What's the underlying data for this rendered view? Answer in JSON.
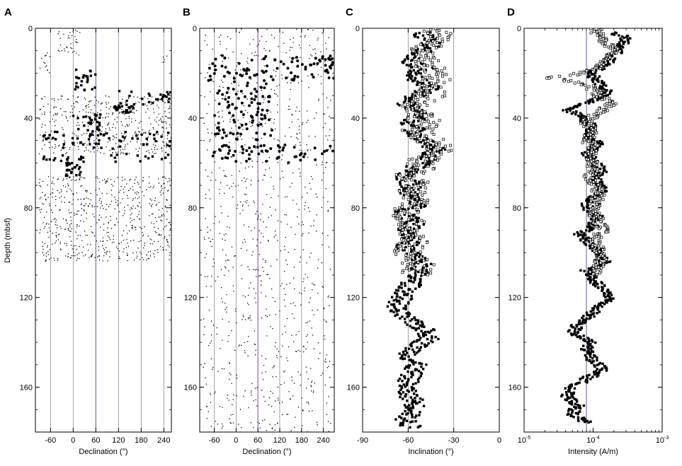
{
  "figure": {
    "y_axis_label": "Depth (mbsf)",
    "colors": {
      "axis": "#000000",
      "gridline": "#8c8c8c",
      "purple_line": "#7a4a9a",
      "points": "#000000"
    }
  },
  "chart_data": [
    {
      "panel": "A",
      "type": "scatter",
      "xlabel": "Declination (°)",
      "ylabel": "Depth (mbsf)",
      "xlim": [
        -100,
        260
      ],
      "ylim": [
        180,
        0
      ],
      "x_ticks": [
        -60,
        0,
        60,
        120,
        180,
        240
      ],
      "y_ticks": [
        0,
        40,
        80,
        120,
        160
      ],
      "gridlines_x": [
        -60,
        0,
        120,
        180,
        240
      ],
      "highlight_line_x": 60,
      "series": [
        {
          "style": "filled-square",
          "clusters": [
            {
              "depth": [
                18,
                28
              ],
              "dec": [
                0,
                60
              ]
            },
            {
              "depth": [
                28,
                34
              ],
              "dec": [
                110,
                260
              ]
            },
            {
              "depth": [
                34,
                38
              ],
              "dec": [
                100,
                160
              ]
            },
            {
              "depth": [
                38,
                46
              ],
              "dec": [
                0,
                80
              ]
            },
            {
              "depth": [
                46,
                54
              ],
              "dec": [
                -80,
                260
              ]
            },
            {
              "depth": [
                56,
                60
              ],
              "dec": [
                -80,
                260
              ]
            },
            {
              "depth": [
                60,
                66
              ],
              "dec": [
                -20,
                20
              ]
            }
          ]
        },
        {
          "style": "dot",
          "clusters": [
            {
              "depth": [
                0,
                12
              ],
              "dec": [
                -40,
                20
              ]
            },
            {
              "depth": [
                10,
                20
              ],
              "dec": [
                -90,
                -60
              ]
            },
            {
              "depth": [
                12,
                16
              ],
              "dec": [
                230,
                260
              ]
            },
            {
              "depth": [
                30,
                56
              ],
              "dec": [
                -90,
                260
              ]
            },
            {
              "depth": [
                66,
                104
              ],
              "dec": [
                -90,
                260
              ]
            }
          ]
        }
      ]
    },
    {
      "panel": "B",
      "type": "scatter",
      "xlabel": "Declination (°)",
      "ylabel": "",
      "xlim": [
        -100,
        270
      ],
      "ylim": [
        180,
        0
      ],
      "x_ticks": [
        -60,
        0,
        60,
        120,
        180,
        240
      ],
      "y_ticks": [
        0,
        40,
        80,
        120,
        160
      ],
      "gridlines_x": [
        -60,
        0,
        120,
        180,
        240
      ],
      "highlight_line_x": 60,
      "series": [
        {
          "style": "filled-circle",
          "clusters": [
            {
              "depth": [
                12,
                24
              ],
              "dec": [
                -80,
                270
              ]
            },
            {
              "depth": [
                24,
                50
              ],
              "dec": [
                -60,
                100
              ]
            },
            {
              "depth": [
                52,
                60
              ],
              "dec": [
                -70,
                270
              ]
            }
          ]
        },
        {
          "style": "dot",
          "clusters": [
            {
              "depth": [
                0,
                180
              ],
              "dec": [
                -90,
                260
              ]
            }
          ]
        }
      ]
    },
    {
      "panel": "C",
      "type": "scatter",
      "xlabel": "Inclination (°)",
      "ylabel": "",
      "xlim": [
        -90,
        0
      ],
      "ylim": [
        180,
        0
      ],
      "x_ticks": [
        -90,
        -60,
        -30,
        0
      ],
      "y_ticks": [
        0,
        40,
        80,
        120,
        160
      ],
      "gridlines_x": [
        -60,
        -30
      ],
      "series": [
        {
          "style": "filled-square",
          "profile": [
            [
              2,
              -52
            ],
            [
              6,
              -45
            ],
            [
              10,
              -48
            ],
            [
              14,
              -60
            ],
            [
              18,
              -50
            ],
            [
              22,
              -58
            ],
            [
              26,
              -45
            ],
            [
              30,
              -55
            ],
            [
              34,
              -62
            ],
            [
              38,
              -50
            ],
            [
              42,
              -58
            ],
            [
              46,
              -55
            ],
            [
              50,
              -50
            ],
            [
              54,
              -42
            ],
            [
              58,
              -48
            ],
            [
              62,
              -55
            ],
            [
              66,
              -62
            ],
            [
              70,
              -58
            ],
            [
              74,
              -60
            ],
            [
              78,
              -52
            ],
            [
              82,
              -62
            ],
            [
              86,
              -55
            ],
            [
              90,
              -60
            ],
            [
              94,
              -58
            ],
            [
              98,
              -62
            ],
            [
              102,
              -55
            ],
            [
              106,
              -50
            ],
            [
              110,
              -55
            ],
            [
              114,
              -58
            ],
            [
              118,
              -62
            ],
            [
              122,
              -66
            ],
            [
              126,
              -68
            ],
            [
              130,
              -60
            ],
            [
              134,
              -50
            ],
            [
              138,
              -45
            ],
            [
              142,
              -55
            ],
            [
              146,
              -60
            ],
            [
              150,
              -55
            ],
            [
              154,
              -58
            ],
            [
              158,
              -60
            ],
            [
              162,
              -62
            ],
            [
              166,
              -56
            ],
            [
              170,
              -55
            ],
            [
              174,
              -62
            ],
            [
              178,
              -58
            ]
          ]
        },
        {
          "style": "open-square",
          "depth_range": [
            0,
            110
          ],
          "profile": [
            [
              2,
              -40
            ],
            [
              6,
              -38
            ],
            [
              10,
              -55
            ],
            [
              14,
              -50
            ],
            [
              18,
              -45
            ],
            [
              22,
              -40
            ],
            [
              26,
              -48
            ],
            [
              30,
              -42
            ],
            [
              34,
              -55
            ],
            [
              38,
              -52
            ],
            [
              42,
              -48
            ],
            [
              46,
              -55
            ],
            [
              50,
              -45
            ],
            [
              54,
              -40
            ],
            [
              58,
              -50
            ],
            [
              62,
              -52
            ],
            [
              66,
              -60
            ],
            [
              70,
              -55
            ],
            [
              74,
              -58
            ],
            [
              78,
              -55
            ],
            [
              82,
              -62
            ],
            [
              86,
              -58
            ],
            [
              90,
              -60
            ],
            [
              94,
              -55
            ],
            [
              98,
              -60
            ],
            [
              102,
              -58
            ],
            [
              106,
              -52
            ],
            [
              110,
              -55
            ]
          ]
        }
      ]
    },
    {
      "panel": "D",
      "type": "scatter",
      "xlabel": "Intensity (A/m)",
      "ylabel": "",
      "xscale": "log",
      "xlim": [
        1e-05,
        0.001
      ],
      "ylim": [
        180,
        0
      ],
      "x_ticks": [
        {
          "base": "10",
          "exp": "-5",
          "value": 1e-05
        },
        {
          "base": "10",
          "exp": "-4",
          "value": 0.0001
        },
        {
          "base": "10",
          "exp": "-3",
          "value": 0.001
        }
      ],
      "y_ticks": [
        0,
        40,
        80,
        120,
        160
      ],
      "highlight_line_x": 8e-05,
      "series": [
        {
          "style": "filled-square",
          "profile": [
            [
              2,
              0.00018
            ],
            [
              4,
              0.0003
            ],
            [
              8,
              0.00025
            ],
            [
              12,
              0.0002
            ],
            [
              16,
              0.00015
            ],
            [
              20,
              9e-05
            ],
            [
              24,
              0.00012
            ],
            [
              28,
              0.00016
            ],
            [
              32,
              0.0001
            ],
            [
              36,
              4e-05
            ],
            [
              40,
              7e-05
            ],
            [
              44,
              0.0001
            ],
            [
              48,
              9e-05
            ],
            [
              52,
              0.00012
            ],
            [
              56,
              8e-05
            ],
            [
              60,
              0.00011
            ],
            [
              64,
              0.00013
            ],
            [
              68,
              0.00011
            ],
            [
              72,
              0.00014
            ],
            [
              76,
              9e-05
            ],
            [
              80,
              8e-05
            ],
            [
              84,
              0.00012
            ],
            [
              88,
              0.0001
            ],
            [
              92,
              6e-05
            ],
            [
              96,
              9e-05
            ],
            [
              100,
              0.00012
            ],
            [
              104,
              0.00015
            ],
            [
              108,
              8e-05
            ],
            [
              112,
              0.0001
            ],
            [
              116,
              0.00013
            ],
            [
              120,
              0.00018
            ],
            [
              124,
              0.00012
            ],
            [
              128,
              9e-05
            ],
            [
              132,
              6e-05
            ],
            [
              136,
              5e-05
            ],
            [
              140,
              9e-05
            ],
            [
              144,
              8e-05
            ],
            [
              148,
              0.0001
            ],
            [
              152,
              0.00014
            ],
            [
              156,
              8e-05
            ],
            [
              160,
              5e-05
            ],
            [
              164,
              4e-05
            ],
            [
              168,
              6e-05
            ],
            [
              172,
              5e-05
            ],
            [
              176,
              8e-05
            ]
          ]
        },
        {
          "style": "open-square",
          "depth_range": [
            0,
            110
          ],
          "profile": [
            [
              2,
              0.00011
            ],
            [
              6,
              0.00015
            ],
            [
              10,
              0.0002
            ],
            [
              14,
              0.00016
            ],
            [
              18,
              0.00011
            ],
            [
              22,
              2e-05
            ],
            [
              26,
              9e-05
            ],
            [
              30,
              0.00012
            ],
            [
              34,
              0.00018
            ],
            [
              38,
              0.00011
            ],
            [
              42,
              8e-05
            ],
            [
              46,
              0.0001
            ],
            [
              50,
              8e-05
            ],
            [
              54,
              0.0001
            ],
            [
              58,
              9e-05
            ],
            [
              62,
              0.0001
            ],
            [
              66,
              9e-05
            ],
            [
              70,
              0.00011
            ],
            [
              74,
              0.00012
            ],
            [
              78,
              0.00011
            ],
            [
              82,
              0.0001
            ],
            [
              86,
              0.00012
            ],
            [
              90,
              0.00014
            ],
            [
              94,
              0.0001
            ],
            [
              98,
              0.00012
            ],
            [
              102,
              0.00013
            ],
            [
              106,
              0.00012
            ],
            [
              110,
              0.0001
            ]
          ]
        }
      ]
    }
  ]
}
